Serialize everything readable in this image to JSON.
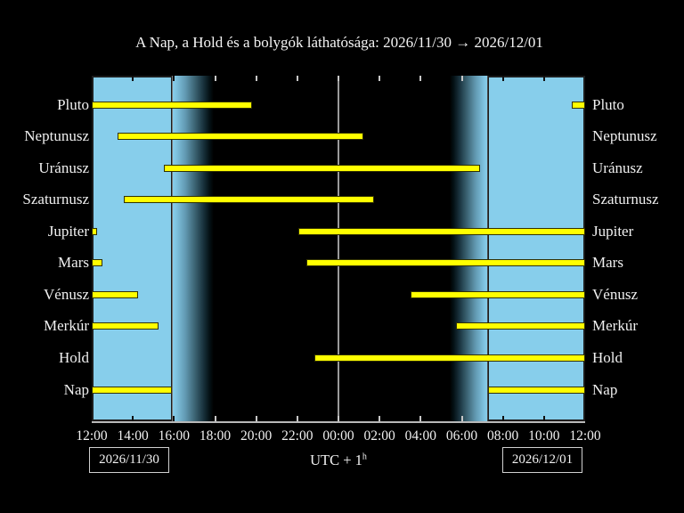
{
  "title": "A Nap, a Hold és a bolygók láthatósága: 2026/11/30 → 2026/12/01",
  "footer": {
    "date_left": "2026/11/30",
    "date_right": "2026/12/01",
    "utc_label": "UTC + 1",
    "utc_sup": "h"
  },
  "chart_data": {
    "type": "bar",
    "subtype": "horizontal-visibility-timeline",
    "title": "A Nap, a Hold és a bolygók láthatósága: 2026/11/30 → 2026/12/01",
    "x_axis": {
      "start_label": "12:00 (2026/11/30)",
      "end_label": "12:00 (2026/12/01)",
      "range_hours": 24,
      "tick_interval_hours": 2,
      "tick_labels": [
        "12:00",
        "14:00",
        "16:00",
        "18:00",
        "20:00",
        "22:00",
        "00:00",
        "02:00",
        "04:00",
        "06:00",
        "08:00",
        "10:00",
        "12:00"
      ],
      "timezone_label": "UTC + 1h"
    },
    "rows": [
      {
        "name": "Pluto",
        "segments_h": [
          [
            0,
            7.78
          ],
          [
            23.33,
            24
          ]
        ],
        "segments_time": [
          [
            "12:00",
            "19:47"
          ],
          [
            "11:20",
            "12:00"
          ]
        ]
      },
      {
        "name": "Neptunusz",
        "segments_h": [
          [
            1.25,
            13.23
          ]
        ],
        "segments_time": [
          [
            "13:15",
            "01:14"
          ]
        ]
      },
      {
        "name": "Uránusz",
        "segments_h": [
          [
            3.53,
            18.87
          ]
        ],
        "segments_time": [
          [
            "15:32",
            "06:52"
          ]
        ]
      },
      {
        "name": "Szaturnusz",
        "segments_h": [
          [
            1.54,
            13.75
          ]
        ],
        "segments_time": [
          [
            "13:32",
            "01:45"
          ]
        ]
      },
      {
        "name": "Jupiter",
        "segments_h": [
          [
            0,
            0.24
          ],
          [
            10.03,
            24
          ]
        ],
        "segments_time": [
          [
            "12:00",
            "12:14"
          ],
          [
            "22:02",
            "12:00"
          ]
        ]
      },
      {
        "name": "Mars",
        "segments_h": [
          [
            0,
            0.52
          ],
          [
            10.42,
            24
          ]
        ],
        "segments_time": [
          [
            "12:00",
            "12:31"
          ],
          [
            "22:25",
            "12:00"
          ]
        ]
      },
      {
        "name": "Vénusz",
        "segments_h": [
          [
            0,
            2.27
          ],
          [
            15.53,
            24
          ]
        ],
        "segments_time": [
          [
            "12:00",
            "14:16"
          ],
          [
            "03:32",
            "12:00"
          ]
        ]
      },
      {
        "name": "Merkúr",
        "segments_h": [
          [
            0,
            3.23
          ],
          [
            17.74,
            24
          ]
        ],
        "segments_time": [
          [
            "12:00",
            "15:14"
          ],
          [
            "05:44",
            "12:00"
          ]
        ]
      },
      {
        "name": "Hold",
        "segments_h": [
          [
            10.85,
            24
          ]
        ],
        "segments_time": [
          [
            "22:51",
            "12:00"
          ]
        ]
      },
      {
        "name": "Nap",
        "segments_h": [
          [
            0,
            3.92
          ],
          [
            19.28,
            24
          ]
        ],
        "segments_time": [
          [
            "12:00",
            "15:55"
          ],
          [
            "07:17",
            "12:00"
          ]
        ]
      }
    ],
    "day_night": {
      "day_left_h": [
        0,
        3.93
      ],
      "dusk_gradient_h": [
        3.93,
        5.95
      ],
      "night_h": [
        5.95,
        17.4
      ],
      "dawn_gradient_h": [
        17.4,
        19.25
      ],
      "day_right_h": [
        19.25,
        24
      ],
      "sunset_time": "15:56",
      "sunrise_time": "07:15",
      "midnight_line_h": 12
    },
    "legend": "none",
    "grid": "off",
    "colors": {
      "background": "#000000",
      "day": "#87ceeb",
      "bar": "#ffff00",
      "text": "#f0f0f0",
      "sunset_line": "#787878",
      "midnight_line": "#9a9a9a",
      "sunrise_line": "#4a4a4a",
      "axis_line": "#b8b8b8"
    }
  }
}
